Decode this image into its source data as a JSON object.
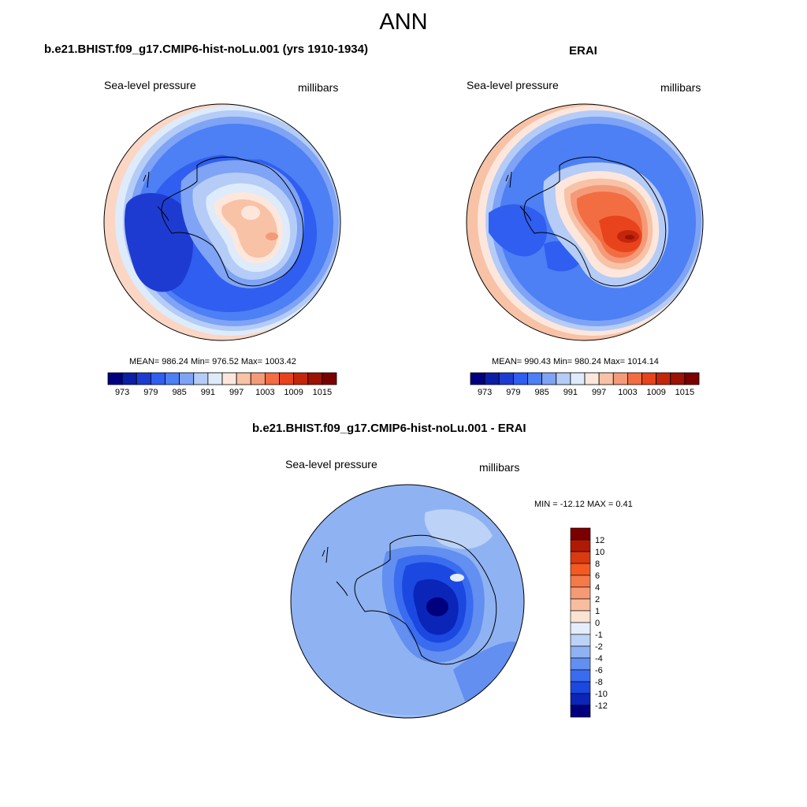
{
  "main_title": "ANN",
  "panels": {
    "test": {
      "title": "b.e21.BHIST.f09_g17.CMIP6-hist-noLu.001 (yrs 1910-1934)",
      "left_string": "Sea-level pressure",
      "right_string": "millibars",
      "stats": "MEAN= 986.24  Min= 976.52  Max= 1003.42"
    },
    "ref": {
      "title": "ERAI",
      "left_string": "Sea-level pressure",
      "right_string": "millibars",
      "stats": "MEAN= 990.43  Min= 980.24  Max= 1014.14"
    },
    "diff": {
      "title": "b.e21.BHIST.f09_g17.CMIP6-hist-noLu.001 - ERAI",
      "left_string": "Sea-level pressure",
      "right_string": "millibars",
      "stats": "MIN = -12.12 MAX =   0.41"
    }
  },
  "chart_data": [
    {
      "type": "heatmap",
      "projection": "south polar stereographic",
      "title": "b.e21.BHIST.f09_g17.CMIP6-hist-noLu.001 (yrs 1910-1934)",
      "variable": "Sea-level pressure",
      "units": "millibars",
      "mean": 986.24,
      "min": 976.52,
      "max": 1003.42,
      "colorbar": {
        "orientation": "horizontal",
        "levels": [
          970,
          973,
          976,
          979,
          982,
          985,
          988,
          991,
          994,
          997,
          1000,
          1003,
          1006,
          1009,
          1012,
          1015,
          1018
        ],
        "tick_labels": [
          "973",
          "979",
          "985",
          "991",
          "997",
          "1003",
          "1009",
          "1015"
        ],
        "colors": [
          "#00007f",
          "#0a1fa5",
          "#1e3bd1",
          "#2f5ef0",
          "#4d7ff5",
          "#7fa3f5",
          "#b5ccf7",
          "#deebfa",
          "#fde7dc",
          "#f8c2a6",
          "#f59a78",
          "#f26d42",
          "#e8431c",
          "#c4260c",
          "#9c1205",
          "#7a0000"
        ]
      }
    },
    {
      "type": "heatmap",
      "projection": "south polar stereographic",
      "title": "ERAI",
      "variable": "Sea-level pressure",
      "units": "millibars",
      "mean": 990.43,
      "min": 980.24,
      "max": 1014.14,
      "colorbar": {
        "orientation": "horizontal",
        "levels": [
          970,
          973,
          976,
          979,
          982,
          985,
          988,
          991,
          994,
          997,
          1000,
          1003,
          1006,
          1009,
          1012,
          1015,
          1018
        ],
        "tick_labels": [
          "973",
          "979",
          "985",
          "991",
          "997",
          "1003",
          "1009",
          "1015"
        ],
        "colors": [
          "#00007f",
          "#0a1fa5",
          "#1e3bd1",
          "#2f5ef0",
          "#4d7ff5",
          "#7fa3f5",
          "#b5ccf7",
          "#deebfa",
          "#fde7dc",
          "#f8c2a6",
          "#f59a78",
          "#f26d42",
          "#e8431c",
          "#c4260c",
          "#9c1205",
          "#7a0000"
        ]
      }
    },
    {
      "type": "heatmap",
      "projection": "south polar stereographic",
      "title": "b.e21.BHIST.f09_g17.CMIP6-hist-noLu.001 - ERAI",
      "variable": "Sea-level pressure",
      "units": "millibars",
      "min": -12.12,
      "max": 0.41,
      "colorbar": {
        "orientation": "vertical",
        "levels": [
          -14,
          -12,
          -10,
          -8,
          -6,
          -4,
          -2,
          -1,
          0,
          1,
          2,
          4,
          6,
          8,
          10,
          12,
          14
        ],
        "tick_labels": [
          "12",
          "10",
          "8",
          "6",
          "4",
          "2",
          "1",
          "0",
          "-1",
          "-2",
          "-4",
          "-6",
          "-8",
          "-10",
          "-12"
        ],
        "colors": [
          "#7a0000",
          "#b01a05",
          "#d93a10",
          "#f25a22",
          "#f47a4a",
          "#f59a74",
          "#f8bd9f",
          "#fbe3d3",
          "#e4eefb",
          "#bcd2f7",
          "#8fb2f3",
          "#628ff0",
          "#3a6cf0",
          "#1b48e0",
          "#0a25b8",
          "#00007f"
        ]
      }
    }
  ]
}
